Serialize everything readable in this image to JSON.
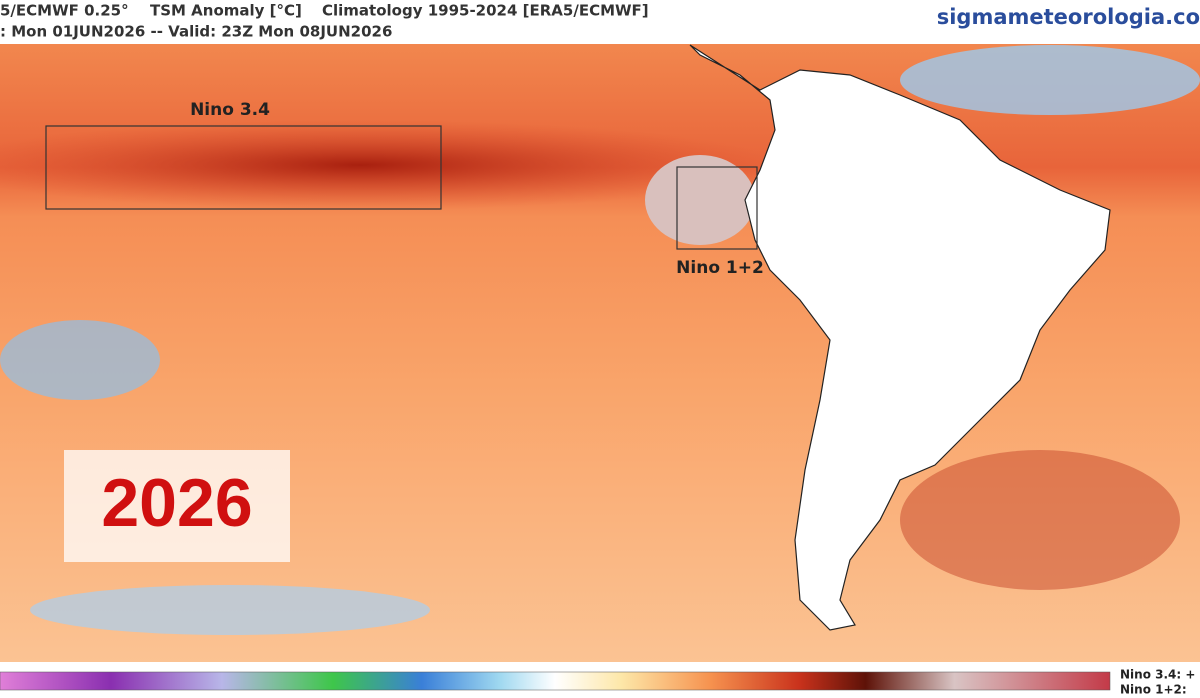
{
  "header": {
    "source": "5/ECMWF 0.25°",
    "variable": "TSM Anomaly [°C]",
    "climatology": "Climatology 1995-2024 [ERA5/ECMWF]",
    "run": ": Mon 01JUN2026 -- Valid: 23Z Mon 08JUN2026",
    "site": "sigmameteorologia.co"
  },
  "map": {
    "regions": [
      {
        "label": "Nino 3.4"
      },
      {
        "label": "Nino 1+2"
      }
    ],
    "stamp": "2026"
  },
  "footer": {
    "nino34": "Nino 3.4: +",
    "nino12": "Nino 1+2: "
  }
}
